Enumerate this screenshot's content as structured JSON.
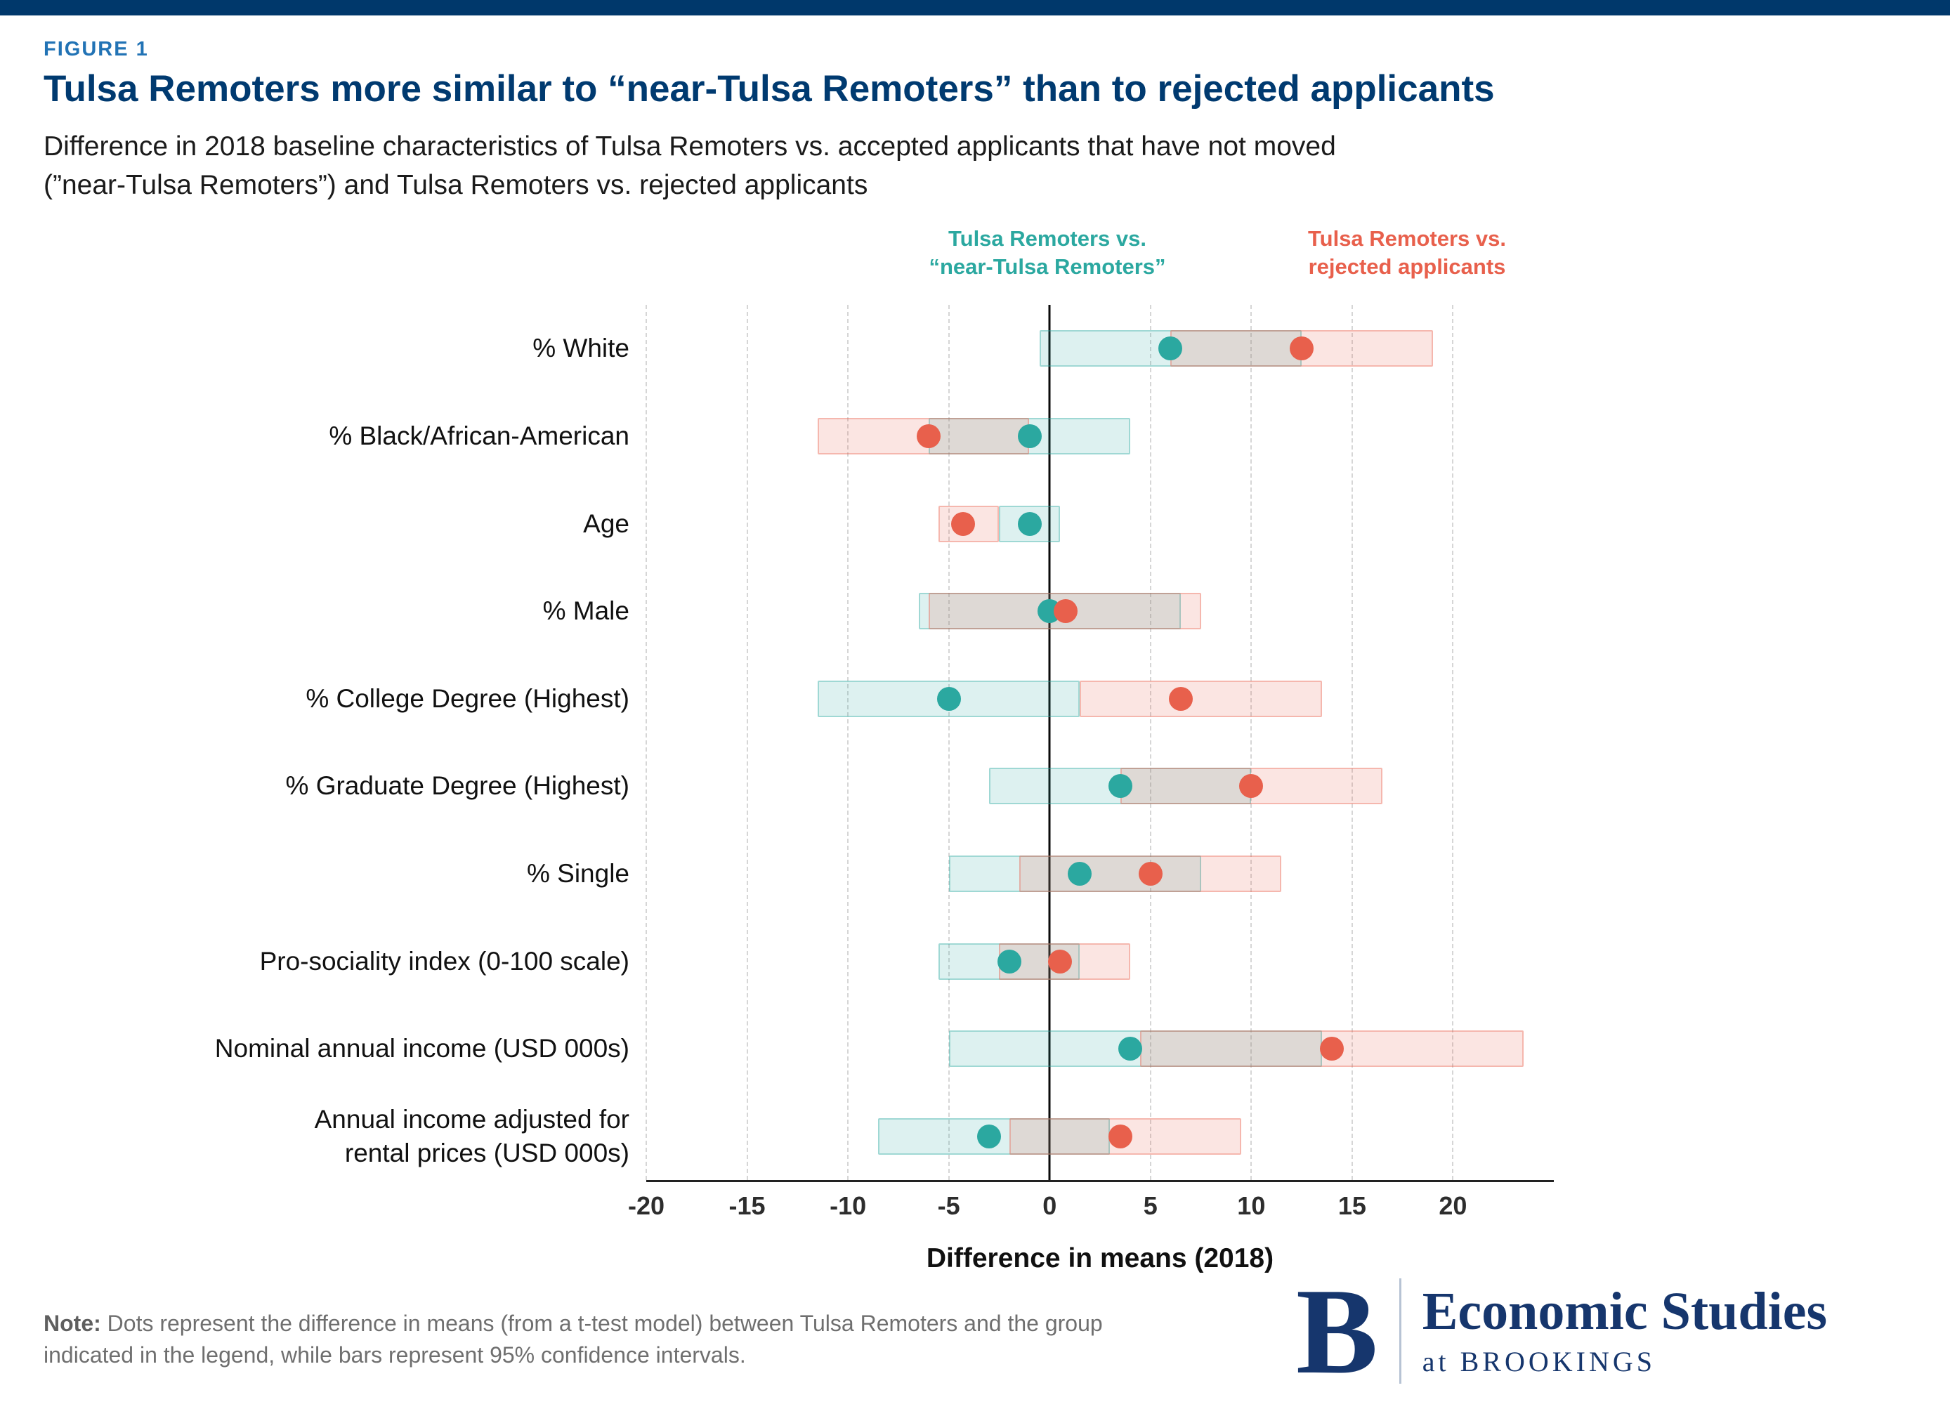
{
  "page": {
    "figure_label": "FIGURE 1",
    "title": "Tulsa Remoters more similar to “near-Tulsa Remoters” than to rejected applicants",
    "subtitle": "Difference in 2018 baseline characteristics of Tulsa Remoters vs. accepted applicants that have not moved\n(”near-Tulsa Remoters”) and Tulsa Remoters vs. rejected applicants",
    "note_label": "Note:",
    "note_text": " Dots represent the difference in means (from a t-test model) between Tulsa Remoters and the group indicated in the legend, while bars represent 95% confidence intervals.",
    "logo": {
      "letter": "B",
      "line1": "Economic Studies",
      "line2": "at BROOKINGS"
    },
    "colors": {
      "navy": "#003a70",
      "figure_label_blue": "#2273b5",
      "teal": "#2BA8A0",
      "orange": "#E8604C"
    }
  },
  "chart_data": {
    "type": "dot-range",
    "title": "Tulsa Remoters more similar to “near-Tulsa Remoters” than to rejected applicants",
    "xlabel": "Difference in means (2018)",
    "xlim": [
      -20,
      25
    ],
    "xticks": [
      -20,
      -15,
      -10,
      -5,
      0,
      5,
      10,
      15,
      20
    ],
    "grid": "dashed-vertical",
    "legend_position": "top",
    "legend": [
      {
        "line1": "Tulsa Remoters vs.",
        "line2": "“near-Tulsa Remoters”",
        "color": "#2BA8A0"
      },
      {
        "line1": "Tulsa Remoters vs.",
        "line2": "rejected applicants",
        "color": "#E8604C"
      }
    ],
    "categories": [
      "% White",
      "% Black/African-American",
      "Age",
      "% Male",
      "% College Degree (Highest)",
      "% Graduate Degree (Highest)",
      "% Single",
      "Pro-sociality index (0-100 scale)",
      "Nominal annual income (USD 000s)",
      "Annual income adjusted for\nrental prices (USD 000s)"
    ],
    "series": [
      {
        "key": "near",
        "name": "Tulsa Remoters vs. “near-Tulsa Remoters”",
        "color": "#2BA8A0",
        "fill": "rgba(43,168,160,0.16)",
        "stroke": "rgba(43,168,160,0.35)",
        "points": [
          {
            "mean": 6,
            "lo": -0.5,
            "hi": 12.5
          },
          {
            "mean": -1,
            "lo": -6,
            "hi": 4
          },
          {
            "mean": -1,
            "lo": -2.5,
            "hi": 0.5
          },
          {
            "mean": 0,
            "lo": -6.5,
            "hi": 6.5
          },
          {
            "mean": -5,
            "lo": -11.5,
            "hi": 1.5
          },
          {
            "mean": 3.5,
            "lo": -3,
            "hi": 10
          },
          {
            "mean": 1.5,
            "lo": -5,
            "hi": 7.5
          },
          {
            "mean": -2,
            "lo": -5.5,
            "hi": 1.5
          },
          {
            "mean": 4,
            "lo": -5,
            "hi": 13.5
          },
          {
            "mean": -3,
            "lo": -8.5,
            "hi": 3
          }
        ]
      },
      {
        "key": "rejected",
        "name": "Tulsa Remoters vs. rejected applicants",
        "color": "#E8604C",
        "fill": "rgba(232,96,76,0.16)",
        "stroke": "rgba(232,96,76,0.35)",
        "points": [
          {
            "mean": 12.5,
            "lo": 6,
            "hi": 19
          },
          {
            "mean": -6,
            "lo": -11.5,
            "hi": -1
          },
          {
            "mean": -4.3,
            "lo": -5.5,
            "hi": -2.5
          },
          {
            "mean": 0.8,
            "lo": -6,
            "hi": 7.5
          },
          {
            "mean": 6.5,
            "lo": 1.5,
            "hi": 13.5
          },
          {
            "mean": 10,
            "lo": 3.5,
            "hi": 16.5
          },
          {
            "mean": 5,
            "lo": -1.5,
            "hi": 11.5
          },
          {
            "mean": 0.5,
            "lo": -2.5,
            "hi": 4
          },
          {
            "mean": 14,
            "lo": 4.5,
            "hi": 23.5
          },
          {
            "mean": 3.5,
            "lo": -2,
            "hi": 9.5
          }
        ]
      }
    ]
  }
}
